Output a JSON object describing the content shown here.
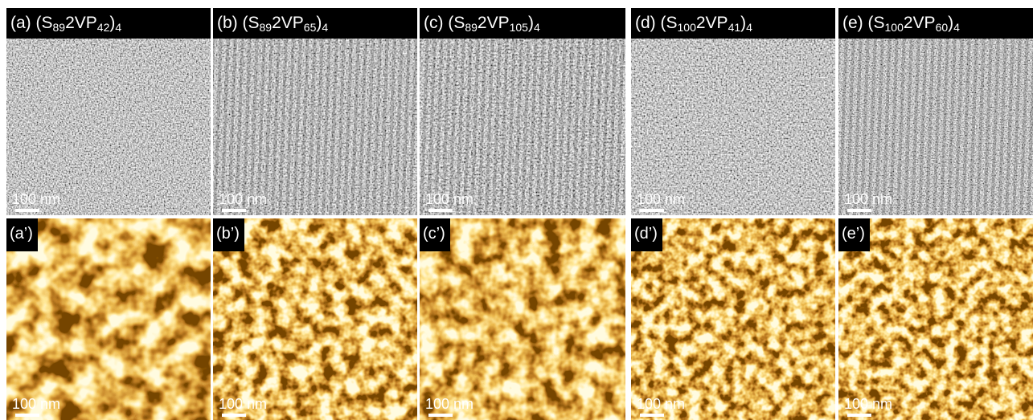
{
  "top_row": [
    {
      "label": [
        {
          "text": "(a) (S"
        },
        {
          "text": "89",
          "sub": true
        },
        {
          "text": "2VP"
        },
        {
          "text": "42",
          "sub": true
        },
        {
          "text": ")"
        },
        {
          "text": "4",
          "sub": true
        }
      ],
      "scale_label": "100 nm"
    },
    {
      "label": [
        {
          "text": "(b) (S"
        },
        {
          "text": "89",
          "sub": true
        },
        {
          "text": "2VP"
        },
        {
          "text": "65",
          "sub": true
        },
        {
          "text": ")"
        },
        {
          "text": "4",
          "sub": true
        }
      ],
      "scale_label": "100 nm"
    },
    {
      "label": [
        {
          "text": "(c) (S"
        },
        {
          "text": "89",
          "sub": true
        },
        {
          "text": "2VP"
        },
        {
          "text": "105",
          "sub": true
        },
        {
          "text": ")"
        },
        {
          "text": "4",
          "sub": true
        }
      ],
      "scale_label": "100 nm"
    },
    {
      "label": [
        {
          "text": "(d) (S"
        },
        {
          "text": "100",
          "sub": true
        },
        {
          "text": "2VP"
        },
        {
          "text": "41",
          "sub": true
        },
        {
          "text": ")"
        },
        {
          "text": "4",
          "sub": true
        }
      ],
      "scale_label": "100 nm"
    },
    {
      "label": [
        {
          "text": "(e) (S"
        },
        {
          "text": "100",
          "sub": true
        },
        {
          "text": "2VP"
        },
        {
          "text": "60",
          "sub": true
        },
        {
          "text": ")"
        },
        {
          "text": "4",
          "sub": true
        }
      ],
      "scale_label": "100 nm"
    }
  ],
  "bottom_row": [
    {
      "label": "(a’)",
      "scale_label": "100 nm"
    },
    {
      "label": "(b’)",
      "scale_label": "100 nm"
    },
    {
      "label": "(c’)",
      "scale_label": "100 nm"
    },
    {
      "label": "(d’)",
      "scale_label": "100 nm"
    },
    {
      "label": "(e’)",
      "scale_label": "100 nm"
    }
  ]
}
